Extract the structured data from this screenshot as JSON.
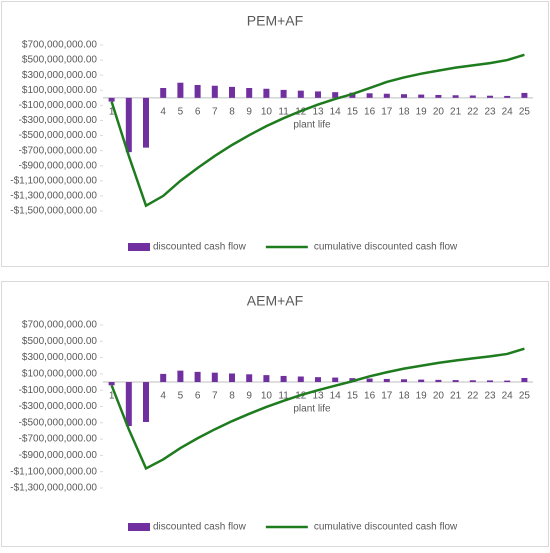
{
  "chart_data": [
    {
      "type": "bar_line",
      "title": "PEM+AF",
      "x_label": "plant life",
      "categories": [
        "1",
        "2",
        "3",
        "4",
        "5",
        "6",
        "7",
        "8",
        "9",
        "10",
        "11",
        "12",
        "13",
        "14",
        "15",
        "16",
        "17",
        "18",
        "19",
        "20",
        "21",
        "22",
        "23",
        "24",
        "25"
      ],
      "series": [
        {
          "name": "discounted cash flow",
          "type": "bar",
          "color": "#7030a0",
          "values": [
            -50000000,
            -720000000,
            -660000000,
            130000000,
            200000000,
            170000000,
            160000000,
            145000000,
            130000000,
            120000000,
            105000000,
            95000000,
            85000000,
            75000000,
            68000000,
            60000000,
            54000000,
            48000000,
            43000000,
            38000000,
            34000000,
            31000000,
            28000000,
            25000000,
            65000000
          ]
        },
        {
          "name": "cumulative discounted cash flow",
          "type": "line",
          "color": "#1e7b1e",
          "values": [
            -50000000,
            -770000000,
            -1430000000,
            -1300000000,
            -1100000000,
            -930000000,
            -770000000,
            -625000000,
            -495000000,
            -375000000,
            -270000000,
            -175000000,
            -90000000,
            -15000000,
            50000000,
            130000000,
            210000000,
            270000000,
            320000000,
            360000000,
            400000000,
            430000000,
            460000000,
            500000000,
            570000000
          ]
        }
      ],
      "ylim": [
        -1500000000,
        700000000
      ],
      "yticks": [
        {
          "value": 700000000,
          "label": "$700,000,000.00"
        },
        {
          "value": 500000000,
          "label": "$500,000,000.00"
        },
        {
          "value": 300000000,
          "label": "$300,000,000.00"
        },
        {
          "value": 100000000,
          "label": "$100,000,000.00"
        },
        {
          "value": -100000000,
          "label": "-$100,000,000.00"
        },
        {
          "value": -300000000,
          "label": "-$300,000,000.00"
        },
        {
          "value": -500000000,
          "label": "-$500,000,000.00"
        },
        {
          "value": -700000000,
          "label": "-$700,000,000.00"
        },
        {
          "value": -900000000,
          "label": "-$900,000,000.00"
        },
        {
          "value": -1100000000,
          "label": "-$1,100,000,000.00"
        },
        {
          "value": -1300000000,
          "label": "-$1,300,000,000.00"
        },
        {
          "value": -1500000000,
          "label": "-$1,500,000,000.00"
        }
      ],
      "legend": "bottom"
    },
    {
      "type": "bar_line",
      "title": "AEM+AF",
      "x_label": "plant life",
      "categories": [
        "1",
        "2",
        "3",
        "4",
        "5",
        "6",
        "7",
        "8",
        "9",
        "10",
        "11",
        "12",
        "13",
        "14",
        "15",
        "16",
        "17",
        "18",
        "19",
        "20",
        "21",
        "22",
        "23",
        "24",
        "25"
      ],
      "series": [
        {
          "name": "discounted cash flow",
          "type": "bar",
          "color": "#7030a0",
          "values": [
            -40000000,
            -540000000,
            -490000000,
            100000000,
            140000000,
            125000000,
            115000000,
            105000000,
            95000000,
            85000000,
            75000000,
            68000000,
            60000000,
            55000000,
            48000000,
            43000000,
            38000000,
            34000000,
            30000000,
            27000000,
            24000000,
            22000000,
            20000000,
            18000000,
            50000000
          ]
        },
        {
          "name": "cumulative discounted cash flow",
          "type": "line",
          "color": "#1e7b1e",
          "values": [
            -40000000,
            -580000000,
            -1060000000,
            -950000000,
            -810000000,
            -690000000,
            -580000000,
            -480000000,
            -390000000,
            -305000000,
            -230000000,
            -160000000,
            -100000000,
            -45000000,
            10000000,
            70000000,
            120000000,
            165000000,
            200000000,
            235000000,
            265000000,
            290000000,
            315000000,
            345000000,
            410000000
          ]
        }
      ],
      "ylim": [
        -1300000000,
        700000000
      ],
      "yticks": [
        {
          "value": 700000000,
          "label": "$700,000,000.00"
        },
        {
          "value": 500000000,
          "label": "$500,000,000.00"
        },
        {
          "value": 300000000,
          "label": "$300,000,000.00"
        },
        {
          "value": 100000000,
          "label": "$100,000,000.00"
        },
        {
          "value": -100000000,
          "label": "-$100,000,000.00"
        },
        {
          "value": -300000000,
          "label": "-$300,000,000.00"
        },
        {
          "value": -500000000,
          "label": "-$500,000,000.00"
        },
        {
          "value": -700000000,
          "label": "-$700,000,000.00"
        },
        {
          "value": -900000000,
          "label": "-$900,000,000.00"
        },
        {
          "value": -1100000000,
          "label": "-$1,100,000,000.00"
        },
        {
          "value": -1300000000,
          "label": "-$1,300,000,000.00"
        }
      ],
      "legend": "bottom"
    }
  ]
}
